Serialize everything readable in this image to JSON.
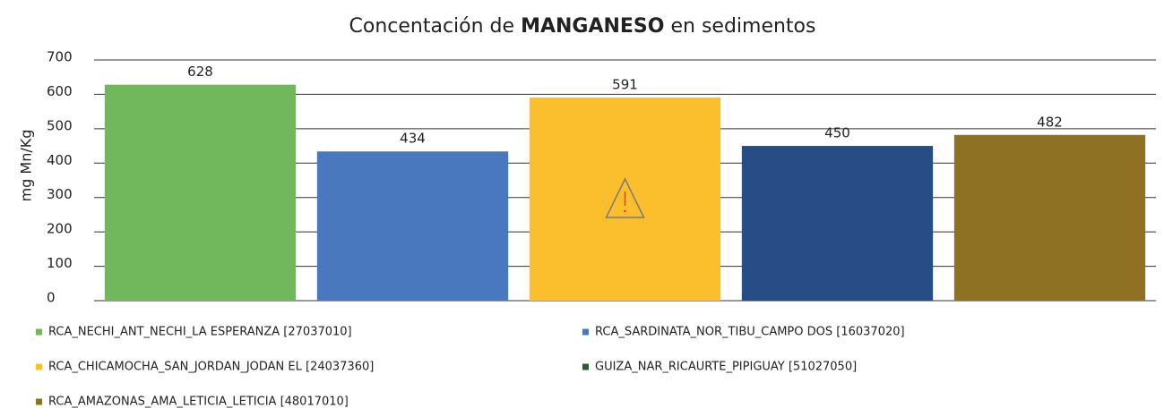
{
  "chart_data": {
    "type": "bar",
    "title_parts": [
      "Concentación de",
      "MANGANESO",
      "en sedimentos"
    ],
    "y_label": "mg Mn/Kg",
    "categories": [
      "RCA_NECHI_ANT_NECHI_LA ESPERANZA [27037010]",
      "RCA_SARDINATA_NOR_TIBU_CAMPO DOS [16037020]",
      "RCA_CHICAMOCHA_SAN_JORDAN_JODAN EL [24037360]",
      "GUIZA_NAR_RICAURTE_PIPIGUAY [51027050]",
      "RCA_AMAZONAS_AMA_LETICIA_LETICIA [48017010]"
    ],
    "values": [
      628,
      434,
      591,
      450,
      482
    ],
    "colors": [
      "#70b85b",
      "#4a78be",
      "#fbbe2c",
      "#284c85",
      "#8f7124"
    ],
    "legend_colors": [
      "#70b85b",
      "#4a78be",
      "#fbbe2c",
      "#2d5a2d",
      "#8f7124"
    ],
    "ylim": [
      0,
      700
    ],
    "yticks": [
      0,
      100,
      200,
      300,
      400,
      500,
      600,
      700
    ],
    "grid": true
  }
}
